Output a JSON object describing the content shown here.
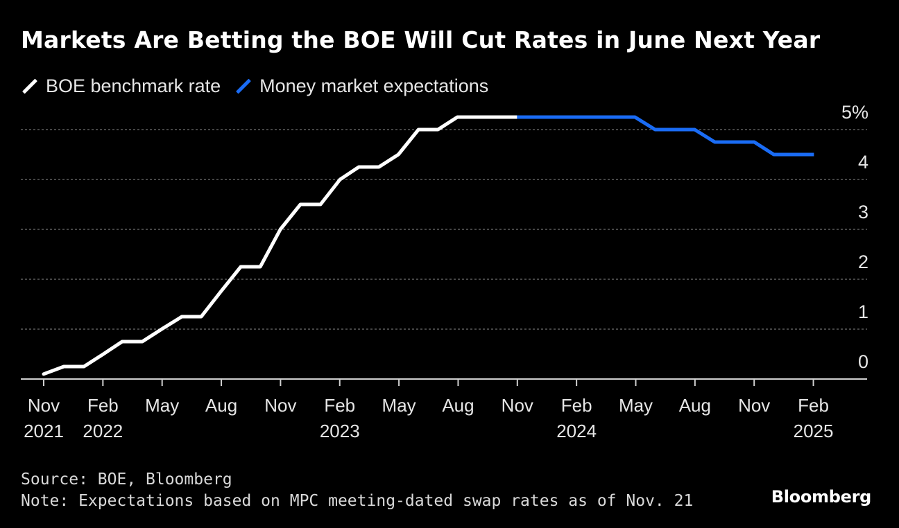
{
  "chart_data": {
    "type": "line",
    "title": "Markets Are Betting the BOE Will Cut Rates in June Next Year",
    "ylim": [
      0,
      5
    ],
    "y_ticks": [
      0,
      1,
      2,
      3,
      4,
      5
    ],
    "y_tick_labels": [
      "0",
      "1",
      "2",
      "3",
      "4",
      "5%"
    ],
    "x_tick_labels": [
      {
        "month": "Nov",
        "year": "2021"
      },
      {
        "month": "Feb",
        "year": "2022"
      },
      {
        "month": "May",
        "year": ""
      },
      {
        "month": "Aug",
        "year": ""
      },
      {
        "month": "Nov",
        "year": ""
      },
      {
        "month": "Feb",
        "year": "2023"
      },
      {
        "month": "May",
        "year": ""
      },
      {
        "month": "Aug",
        "year": ""
      },
      {
        "month": "Nov",
        "year": ""
      },
      {
        "month": "Feb",
        "year": "2024"
      },
      {
        "month": "May",
        "year": ""
      },
      {
        "month": "Aug",
        "year": ""
      },
      {
        "month": "Nov",
        "year": ""
      },
      {
        "month": "Feb",
        "year": "2025"
      }
    ],
    "grid": true,
    "legend_position": "top-left",
    "series": [
      {
        "name": "BOE benchmark rate",
        "color": "#ffffff",
        "points": [
          [
            "2021-11-15",
            0.1
          ],
          [
            "2021-12-16",
            0.25
          ],
          [
            "2022-01-16",
            0.25
          ],
          [
            "2022-02-15",
            0.5
          ],
          [
            "2022-03-16",
            0.75
          ],
          [
            "2022-04-16",
            0.75
          ],
          [
            "2022-05-16",
            1.0
          ],
          [
            "2022-06-16",
            1.25
          ],
          [
            "2022-07-16",
            1.25
          ],
          [
            "2022-08-15",
            1.75
          ],
          [
            "2022-09-15",
            2.25
          ],
          [
            "2022-10-15",
            2.25
          ],
          [
            "2022-11-15",
            3.0
          ],
          [
            "2022-12-16",
            3.5
          ],
          [
            "2023-01-16",
            3.5
          ],
          [
            "2023-02-15",
            4.0
          ],
          [
            "2023-03-16",
            4.25
          ],
          [
            "2023-04-16",
            4.25
          ],
          [
            "2023-05-16",
            4.5
          ],
          [
            "2023-06-16",
            5.0
          ],
          [
            "2023-07-16",
            5.0
          ],
          [
            "2023-08-15",
            5.25
          ],
          [
            "2023-09-15",
            5.25
          ],
          [
            "2023-10-15",
            5.25
          ],
          [
            "2023-11-15",
            5.25
          ]
        ]
      },
      {
        "name": "Money market expectations",
        "color": "#1a6cf5",
        "points": [
          [
            "2023-11-15",
            5.25
          ],
          [
            "2023-12-15",
            5.25
          ],
          [
            "2024-01-15",
            5.25
          ],
          [
            "2024-02-15",
            5.25
          ],
          [
            "2024-03-15",
            5.25
          ],
          [
            "2024-04-15",
            5.25
          ],
          [
            "2024-05-15",
            5.25
          ],
          [
            "2024-06-15",
            5.0
          ],
          [
            "2024-07-15",
            5.0
          ],
          [
            "2024-08-15",
            5.0
          ],
          [
            "2024-09-15",
            4.75
          ],
          [
            "2024-10-15",
            4.75
          ],
          [
            "2024-11-15",
            4.75
          ],
          [
            "2024-12-15",
            4.5
          ],
          [
            "2025-01-15",
            4.5
          ],
          [
            "2025-02-15",
            4.5
          ]
        ]
      }
    ]
  },
  "legend": {
    "items": [
      {
        "label": "BOE benchmark rate",
        "color": "#ffffff"
      },
      {
        "label": "Money market expectations",
        "color": "#1a6cf5"
      }
    ]
  },
  "footer": {
    "source": "Source: BOE, Bloomberg",
    "note": "Note: Expectations based on MPC meeting-dated swap rates as of Nov. 21"
  },
  "brand": "Bloomberg"
}
